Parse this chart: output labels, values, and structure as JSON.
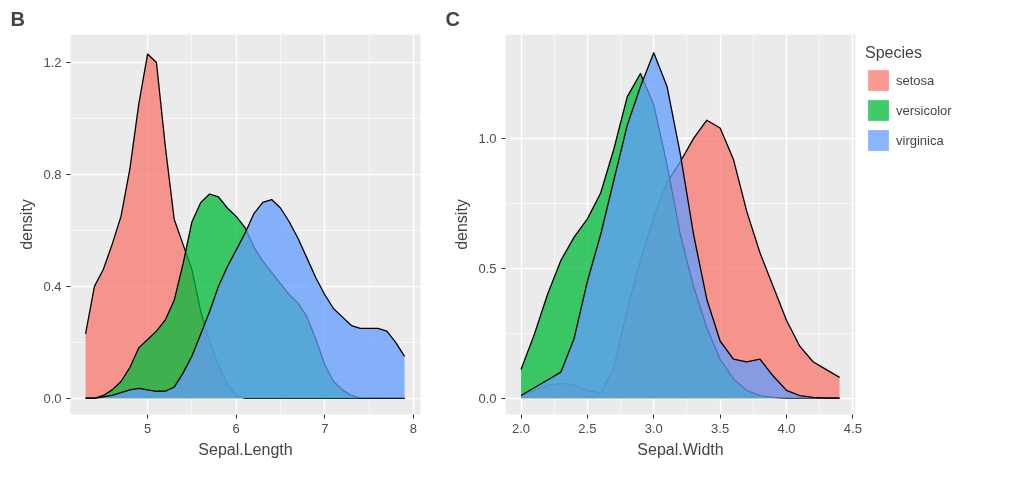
{
  "chart_data": [
    {
      "type": "area",
      "title": "B",
      "xlabel": "Sepal.Length",
      "ylabel": "density",
      "x": [
        4.3,
        4.4,
        4.5,
        4.6,
        4.7,
        4.8,
        4.9,
        5.0,
        5.1,
        5.2,
        5.3,
        5.4,
        5.5,
        5.6,
        5.7,
        5.8,
        5.9,
        6.0,
        6.1,
        6.2,
        6.3,
        6.4,
        6.5,
        6.6,
        6.7,
        6.8,
        6.9,
        7.0,
        7.1,
        7.2,
        7.3,
        7.4,
        7.5,
        7.6,
        7.7,
        7.8,
        7.9
      ],
      "series": [
        {
          "color": "#f8766d",
          "values": [
            0.23,
            0.4,
            0.46,
            0.55,
            0.65,
            0.82,
            1.05,
            1.23,
            1.2,
            0.9,
            0.64,
            0.55,
            0.46,
            0.31,
            0.2,
            0.12,
            0.05,
            0.01,
            0,
            0,
            0,
            0,
            0,
            0,
            0,
            0,
            0,
            0,
            0,
            0,
            0,
            0,
            0,
            0,
            0,
            0,
            0
          ]
        },
        {
          "color": "#00ba38",
          "values": [
            0,
            0,
            0.01,
            0.03,
            0.06,
            0.11,
            0.18,
            0.21,
            0.24,
            0.28,
            0.35,
            0.48,
            0.63,
            0.7,
            0.73,
            0.72,
            0.68,
            0.65,
            0.61,
            0.54,
            0.49,
            0.45,
            0.41,
            0.37,
            0.34,
            0.29,
            0.21,
            0.12,
            0.06,
            0.03,
            0.01,
            0,
            0,
            0,
            0,
            0,
            0
          ]
        },
        {
          "color": "#619cff",
          "values": [
            0,
            0,
            0.005,
            0.01,
            0.02,
            0.03,
            0.035,
            0.03,
            0.025,
            0.025,
            0.04,
            0.09,
            0.15,
            0.23,
            0.31,
            0.4,
            0.47,
            0.53,
            0.59,
            0.66,
            0.7,
            0.71,
            0.68,
            0.63,
            0.57,
            0.5,
            0.43,
            0.37,
            0.32,
            0.29,
            0.26,
            0.25,
            0.25,
            0.25,
            0.24,
            0.2,
            0.15
          ]
        }
      ],
      "xlim": [
        4.13,
        8.08
      ],
      "ylim": [
        -0.058,
        1.3
      ],
      "xticks": [
        5,
        6,
        7,
        8
      ],
      "yticks": [
        {
          "value": 0,
          "label": "0.0"
        },
        {
          "value": 0.4,
          "label": "0.4"
        },
        {
          "value": 0.8,
          "label": "0.8"
        },
        {
          "value": 1.2,
          "label": "1.2"
        }
      ],
      "grid": true
    },
    {
      "type": "area",
      "title": "C",
      "xlabel": "Sepal.Width",
      "ylabel": "density",
      "legend_title": "Species",
      "x": [
        2.0,
        2.1,
        2.2,
        2.3,
        2.4,
        2.5,
        2.6,
        2.7,
        2.8,
        2.9,
        3.0,
        3.1,
        3.2,
        3.3,
        3.4,
        3.5,
        3.6,
        3.7,
        3.8,
        3.9,
        4.0,
        4.1,
        4.2,
        4.3,
        4.4
      ],
      "series": [
        {
          "name": "setosa",
          "color": "#f8766d",
          "values": [
            0.01,
            0.03,
            0.05,
            0.057,
            0.05,
            0.03,
            0.02,
            0.12,
            0.34,
            0.53,
            0.7,
            0.83,
            0.91,
            1.0,
            1.07,
            1.04,
            0.92,
            0.72,
            0.56,
            0.43,
            0.3,
            0.2,
            0.14,
            0.11,
            0.08
          ]
        },
        {
          "name": "versicolor",
          "color": "#00ba38",
          "values": [
            0.11,
            0.245,
            0.4,
            0.53,
            0.62,
            0.69,
            0.79,
            0.96,
            1.16,
            1.25,
            1.13,
            0.9,
            0.63,
            0.43,
            0.27,
            0.15,
            0.074,
            0.03,
            0.01,
            0.003,
            0,
            0,
            0,
            0,
            0
          ]
        },
        {
          "name": "virginica",
          "color": "#619cff",
          "values": [
            0.01,
            0.04,
            0.07,
            0.1,
            0.23,
            0.45,
            0.63,
            0.84,
            1.05,
            1.2,
            1.33,
            1.2,
            0.94,
            0.63,
            0.38,
            0.22,
            0.15,
            0.14,
            0.15,
            0.085,
            0.03,
            0.01,
            0.003,
            0,
            0
          ]
        }
      ],
      "xlim": [
        1.883,
        4.52
      ],
      "ylim": [
        -0.063,
        1.4
      ],
      "xticks": [
        {
          "value": 2,
          "label": "2.0"
        },
        2.5,
        {
          "value": 3,
          "label": "3.0"
        },
        3.5,
        {
          "value": 4,
          "label": "4.0"
        },
        4.5
      ],
      "yticks": [
        {
          "value": 0,
          "label": "0.0"
        },
        0.5,
        {
          "value": 1,
          "label": "1.0"
        }
      ],
      "grid": true,
      "legend": "right"
    }
  ]
}
